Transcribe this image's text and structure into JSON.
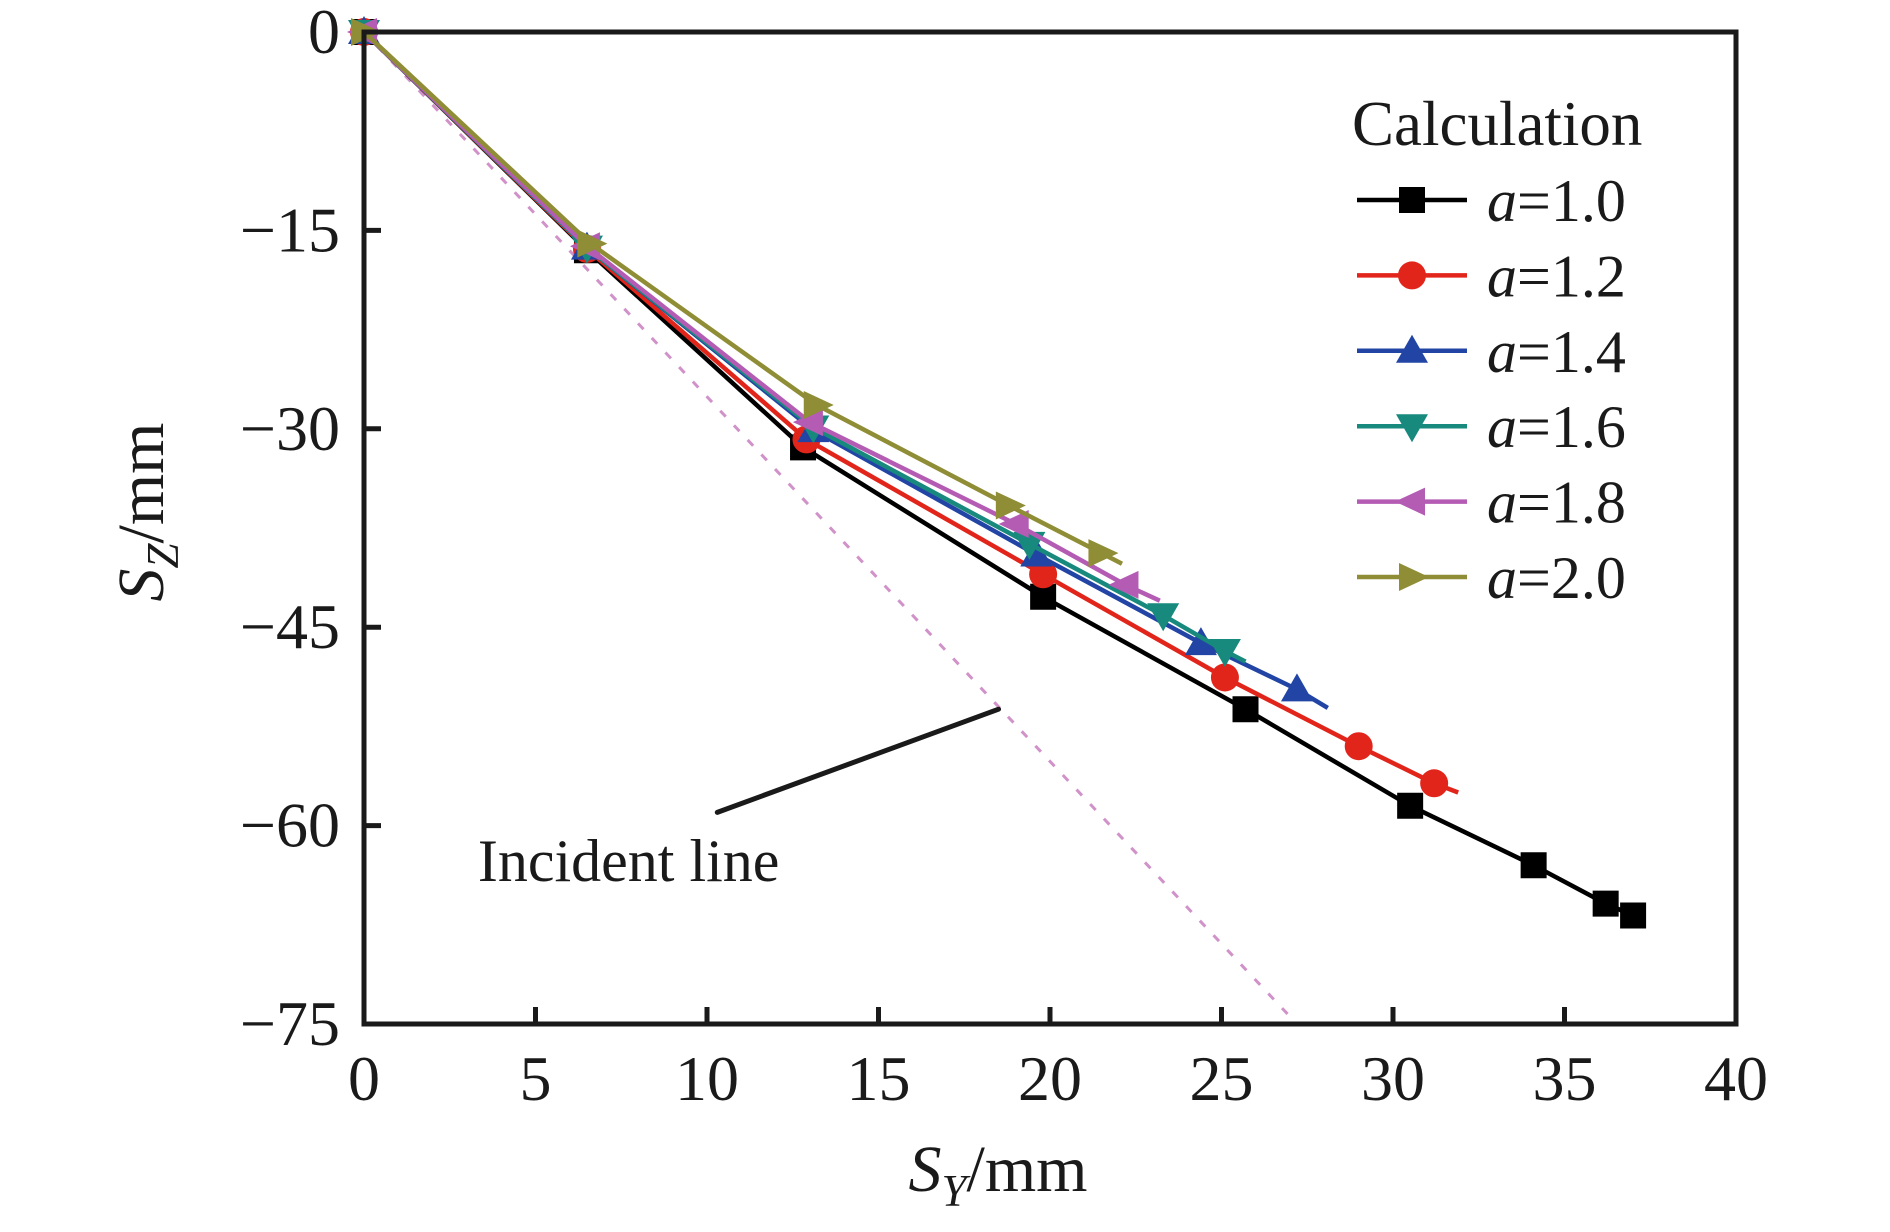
{
  "figure": {
    "background": "#ffffff",
    "frame_color": "#1a1a1a"
  },
  "chart_data": {
    "type": "line",
    "title": "",
    "xlabel": {
      "symbol": "S",
      "sub": "Y",
      "unit": "/mm"
    },
    "ylabel": {
      "symbol": "S",
      "sub": "Z",
      "unit": "/mm"
    },
    "xlim": [
      0,
      40
    ],
    "ylim": [
      -75,
      0
    ],
    "x_ticks": [
      0,
      5,
      10,
      15,
      20,
      25,
      30,
      35,
      40
    ],
    "y_ticks": [
      0,
      -15,
      -30,
      -45,
      -60,
      -75
    ],
    "grid": false,
    "legend": {
      "title": "Calculation",
      "position": "upper-right"
    },
    "series": [
      {
        "label": "a=1.0",
        "color": "#000000",
        "marker": "square",
        "points": [
          [
            0,
            0
          ],
          [
            6.5,
            -16.5
          ],
          [
            12.8,
            -31.4
          ],
          [
            19.8,
            -42.7
          ],
          [
            25.7,
            -51.2
          ],
          [
            30.5,
            -58.5
          ],
          [
            34.1,
            -63.0
          ],
          [
            36.2,
            -65.9
          ],
          [
            37.0,
            -66.8
          ]
        ],
        "tail": null
      },
      {
        "label": "a=1.2",
        "color": "#e2251b",
        "marker": "circle",
        "points": [
          [
            0,
            0
          ],
          [
            6.5,
            -16.4
          ],
          [
            12.9,
            -30.8
          ],
          [
            19.8,
            -41.0
          ],
          [
            25.1,
            -48.8
          ],
          [
            29.0,
            -54.0
          ],
          [
            31.2,
            -56.8
          ]
        ],
        "tail": [
          31.9,
          -57.5
        ]
      },
      {
        "label": "a=1.4",
        "color": "#2144a5",
        "marker": "triangle-up",
        "points": [
          [
            0,
            0
          ],
          [
            6.5,
            -16.3
          ],
          [
            13.1,
            -30.1
          ],
          [
            19.6,
            -39.5
          ],
          [
            24.4,
            -46.2
          ],
          [
            27.2,
            -49.7
          ]
        ],
        "tail": [
          28.1,
          -51.1
        ]
      },
      {
        "label": "a=1.6",
        "color": "#17897d",
        "marker": "triangle-down",
        "points": [
          [
            0,
            0
          ],
          [
            6.5,
            -16.3
          ],
          [
            13.1,
            -29.9
          ],
          [
            19.4,
            -38.7
          ],
          [
            23.3,
            -44.1
          ],
          [
            25.1,
            -46.8
          ]
        ],
        "tail": [
          25.7,
          -47.6
        ]
      },
      {
        "label": "a=1.8",
        "color": "#b45cb4",
        "marker": "triangle-left",
        "points": [
          [
            0,
            0
          ],
          [
            6.5,
            -16.2
          ],
          [
            13.0,
            -29.5
          ],
          [
            19.0,
            -37.2
          ],
          [
            22.2,
            -41.8
          ]
        ],
        "tail": [
          23.2,
          -43.0
        ]
      },
      {
        "label": "a=2.0",
        "color": "#8f8d35",
        "marker": "triangle-right",
        "points": [
          [
            0,
            0
          ],
          [
            6.6,
            -16.0
          ],
          [
            13.2,
            -28.2
          ],
          [
            18.8,
            -35.8
          ],
          [
            21.5,
            -39.4
          ]
        ],
        "tail": [
          22.1,
          -40.2
        ]
      }
    ],
    "incident_line": {
      "label": "Incident line",
      "color": "#d092c9",
      "style": "dashed",
      "from": [
        0,
        0
      ],
      "to": [
        27.2,
        -75
      ]
    },
    "annotation": {
      "text": "Incident line",
      "text_anchor_data": [
        3.32,
        -64.2
      ],
      "pointer": [
        [
          10.3,
          -59.0
        ],
        [
          18.5,
          -51.2
        ]
      ],
      "pointer_color": "#1a1a1a"
    }
  }
}
